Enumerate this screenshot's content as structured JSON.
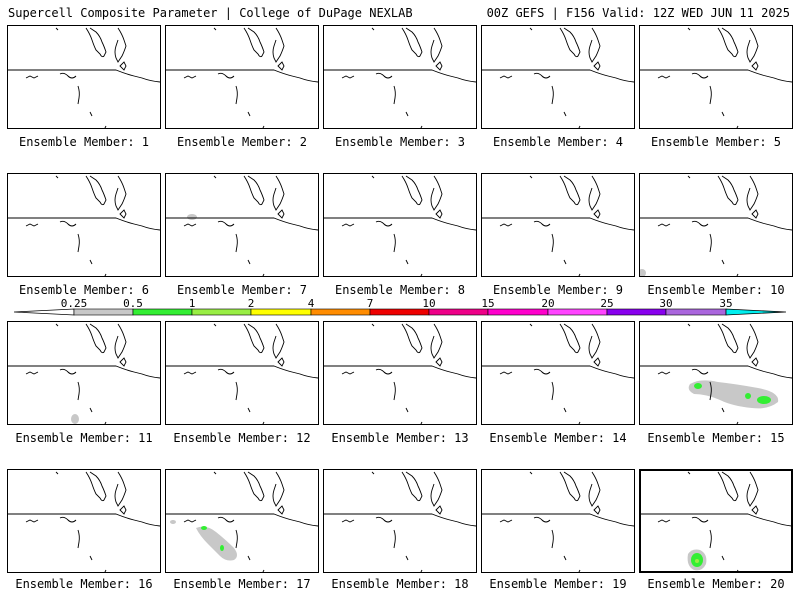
{
  "header": {
    "title_left": "Supercell Composite Parameter | College of DuPage NEXLAB",
    "title_right": "00Z GEFS | F156 Valid: 12Z WED JUN 11 2025"
  },
  "legend": {
    "labels": [
      "0.25",
      "0.5",
      "1",
      "2",
      "4",
      "7",
      "10",
      "15",
      "20",
      "25",
      "30",
      "35"
    ],
    "colors": [
      "#ffffff",
      "#c8c8c8",
      "#33ee33",
      "#99ee44",
      "#ffff00",
      "#ff8c00",
      "#ee0000",
      "#ee0088",
      "#ff00cc",
      "#ff44ff",
      "#8800ee",
      "#aa66dd",
      "#00eeee"
    ]
  },
  "panels": [
    {
      "label": "Ensemble Member: 1"
    },
    {
      "label": "Ensemble Member: 2"
    },
    {
      "label": "Ensemble Member: 3"
    },
    {
      "label": "Ensemble Member: 4"
    },
    {
      "label": "Ensemble Member: 5"
    },
    {
      "label": "Ensemble Member: 6"
    },
    {
      "label": "Ensemble Member: 7"
    },
    {
      "label": "Ensemble Member: 8"
    },
    {
      "label": "Ensemble Member: 9"
    },
    {
      "label": "Ensemble Member: 10"
    },
    {
      "label": "Ensemble Member: 11"
    },
    {
      "label": "Ensemble Member: 12"
    },
    {
      "label": "Ensemble Member: 13"
    },
    {
      "label": "Ensemble Member: 14"
    },
    {
      "label": "Ensemble Member: 15"
    },
    {
      "label": "Ensemble Member: 16"
    },
    {
      "label": "Ensemble Member: 17"
    },
    {
      "label": "Ensemble Member: 18"
    },
    {
      "label": "Ensemble Member: 19"
    },
    {
      "label": "Ensemble Member: 20",
      "selected": true
    }
  ]
}
